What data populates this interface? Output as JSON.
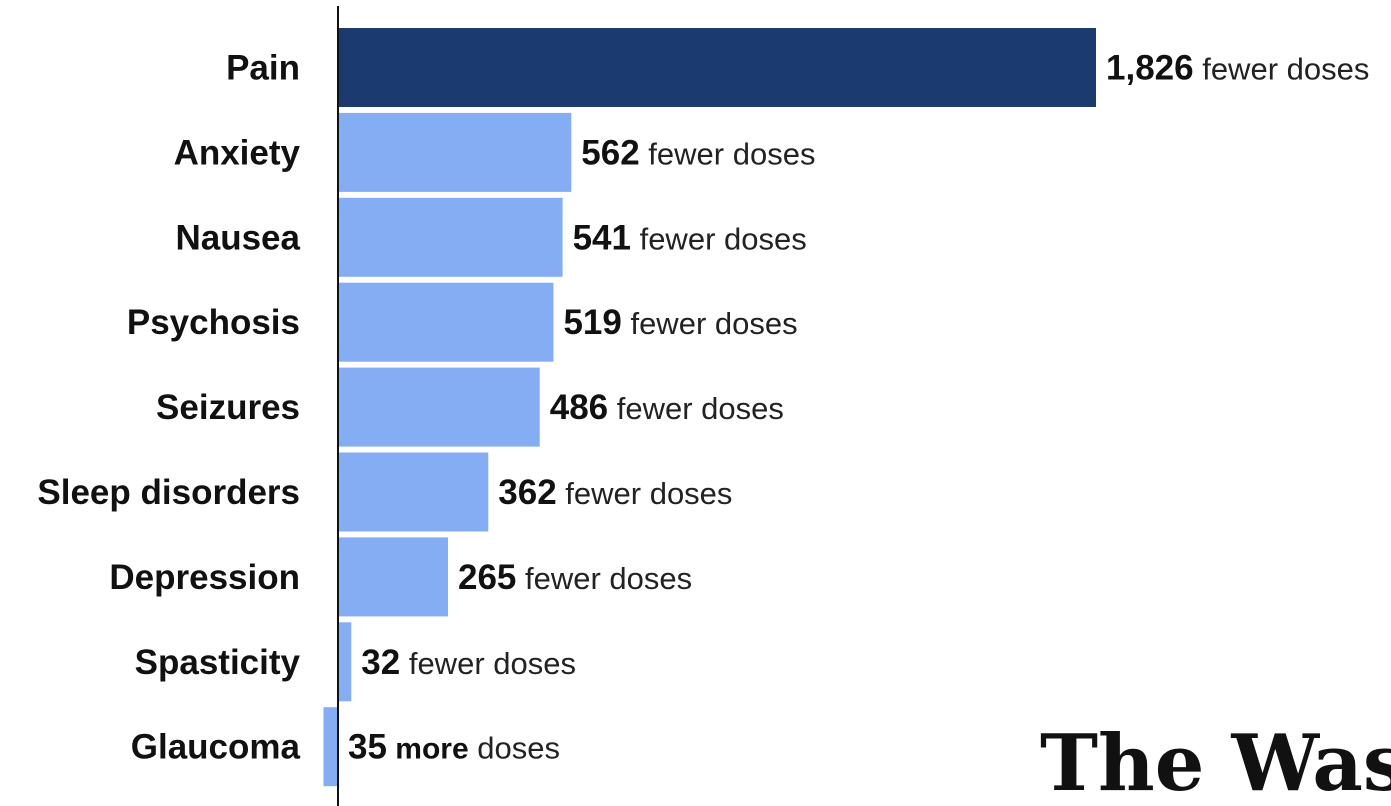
{
  "chart_data": {
    "type": "bar",
    "orientation": "horizontal",
    "categories": [
      "Pain",
      "Anxiety",
      "Nausea",
      "Psychosis",
      "Seizures",
      "Sleep disorders",
      "Depression",
      "Spasticity",
      "Glaucoma"
    ],
    "values": [
      -1826,
      -562,
      -541,
      -519,
      -486,
      -362,
      -265,
      -32,
      35
    ],
    "labels": [
      {
        "number": "1,826",
        "direction": "",
        "unit": "fewer doses"
      },
      {
        "number": "562",
        "direction": "",
        "unit": "fewer doses"
      },
      {
        "number": "541",
        "direction": "",
        "unit": "fewer doses"
      },
      {
        "number": "519",
        "direction": "",
        "unit": "fewer doses"
      },
      {
        "number": "486",
        "direction": "",
        "unit": "fewer doses"
      },
      {
        "number": "362",
        "direction": "",
        "unit": "fewer doses"
      },
      {
        "number": "265",
        "direction": "",
        "unit": "fewer doses"
      },
      {
        "number": "32",
        "direction": "",
        "unit": "fewer doses"
      },
      {
        "number": "35",
        "direction": "more",
        "unit": "doses"
      }
    ],
    "highlight_index": 0,
    "colors": {
      "highlight": "#1b3a6e",
      "bar": "#84adf3",
      "axis": "#111111"
    },
    "title": "",
    "xlabel": "",
    "ylabel": ""
  },
  "logo": {
    "text": "The Washing"
  }
}
